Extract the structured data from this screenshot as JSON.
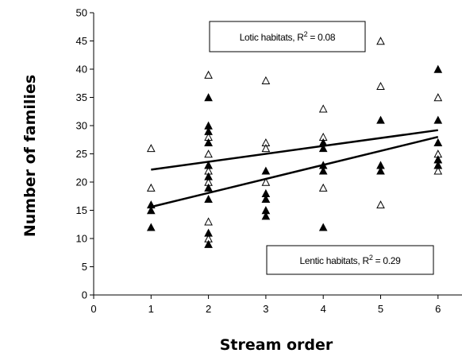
{
  "chart_data": {
    "type": "scatter",
    "title": "",
    "xlabel": "Stream order",
    "ylabel": "Number of families",
    "xlim": [
      0,
      6.5
    ],
    "ylim": [
      0,
      50
    ],
    "x_ticks": [
      "0",
      "1",
      "2",
      "3",
      "4",
      "5",
      "6"
    ],
    "y_ticks": [
      "0",
      "5",
      "10",
      "15",
      "20",
      "25",
      "30",
      "35",
      "40",
      "45",
      "50"
    ],
    "grid": false,
    "series": [
      {
        "name": "Lotic habitats",
        "marker": "open-triangle",
        "color": "#000000",
        "points": [
          [
            1,
            26
          ],
          [
            1,
            19
          ],
          [
            2,
            39
          ],
          [
            2,
            28
          ],
          [
            2,
            27
          ],
          [
            2,
            25
          ],
          [
            2,
            23
          ],
          [
            2,
            22
          ],
          [
            2,
            20
          ],
          [
            2,
            13
          ],
          [
            2,
            10
          ],
          [
            3,
            38
          ],
          [
            3,
            27
          ],
          [
            3,
            26
          ],
          [
            3,
            20
          ],
          [
            3,
            17
          ],
          [
            4,
            33
          ],
          [
            4,
            28
          ],
          [
            4,
            27
          ],
          [
            4,
            19
          ],
          [
            5,
            45
          ],
          [
            5,
            37
          ],
          [
            5,
            16
          ],
          [
            6,
            35
          ],
          [
            6,
            27
          ],
          [
            6,
            25
          ],
          [
            6,
            24
          ],
          [
            6,
            23
          ],
          [
            6,
            22
          ]
        ],
        "trend": {
          "x": [
            1,
            6
          ],
          "y": [
            22.2,
            29.2
          ]
        }
      },
      {
        "name": "Lentic habitats",
        "marker": "filled-triangle",
        "color": "#000000",
        "points": [
          [
            1,
            16
          ],
          [
            1,
            15
          ],
          [
            1,
            12
          ],
          [
            2,
            35
          ],
          [
            2,
            30
          ],
          [
            2,
            29
          ],
          [
            2,
            27
          ],
          [
            2,
            23
          ],
          [
            2,
            21
          ],
          [
            2,
            19
          ],
          [
            2,
            17
          ],
          [
            2,
            11
          ],
          [
            2,
            9
          ],
          [
            3,
            22
          ],
          [
            3,
            18
          ],
          [
            3,
            17
          ],
          [
            3,
            15
          ],
          [
            3,
            14
          ],
          [
            4,
            27
          ],
          [
            4,
            26
          ],
          [
            4,
            23
          ],
          [
            4,
            22
          ],
          [
            4,
            12
          ],
          [
            5,
            31
          ],
          [
            5,
            23
          ],
          [
            5,
            22
          ],
          [
            6,
            40
          ],
          [
            6,
            31
          ],
          [
            6,
            27
          ],
          [
            6,
            24
          ],
          [
            6,
            23
          ]
        ],
        "trend": {
          "x": [
            1,
            6
          ],
          "y": [
            15.6,
            28.0
          ]
        }
      }
    ],
    "annotations": [
      {
        "series": "Lotic habitats",
        "label": "Lotic habitats, R",
        "sup": "2",
        "value": " = 0.08"
      },
      {
        "series": "Lentic habitats",
        "label": "Lentic habitats, R",
        "sup": "2",
        "value": " = 0.29"
      }
    ]
  }
}
